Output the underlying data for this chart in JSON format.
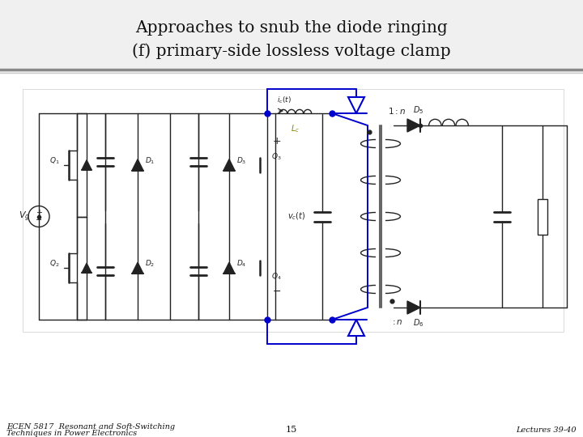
{
  "title_line1": "Approaches to snub the diode ringing",
  "title_line2": "(f) primary-side lossless voltage clamp",
  "footer_left_line1": "ECEN 5817  Resonant and Soft-Switching",
  "footer_left_line2": "Techniques in Power Electronics",
  "footer_center": "15",
  "footer_right": "Lectures 39-40",
  "bg_color": "#f2f2f2",
  "slide_bg": "#ffffff",
  "title_color": "#111111",
  "footer_color": "#111111",
  "circuit_line_color": "#222222",
  "circuit_blue_color": "#0000cc",
  "title_fontsize": 14.5,
  "footer_fontsize": 7
}
